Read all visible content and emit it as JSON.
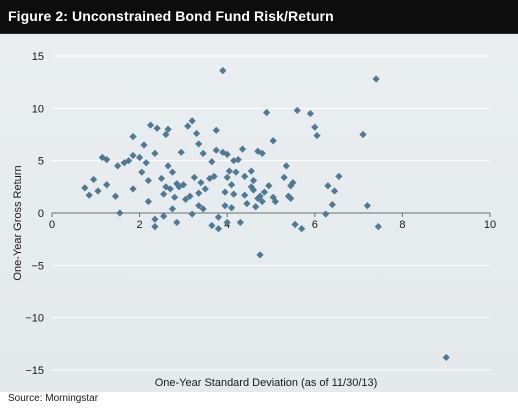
{
  "figure": {
    "title": "Figure 2: Unconstrained Bond Fund Risk/Return",
    "source": "Source: Morningstar"
  },
  "colors": {
    "title_background": "#0d0d0d",
    "panel_background": "#e6ebed",
    "gridline": "#ffffff",
    "marker": "#4d7a94"
  },
  "chart_data": {
    "type": "scatter",
    "title": "Figure 2: Unconstrained Bond Fund Risk/Return",
    "xlabel": "One-Year Standard Deviation (as of 11/30/13)",
    "ylabel": "One-Year Gross Return",
    "xlim": [
      0,
      10
    ],
    "ylim": [
      -15,
      15
    ],
    "x_ticks": [
      0,
      2,
      4,
      6,
      8,
      10
    ],
    "y_ticks": [
      -15,
      -10,
      -5,
      0,
      5,
      10,
      15
    ],
    "x_tick_labels": [
      "0",
      "2",
      "4",
      "6",
      "8",
      "10"
    ],
    "y_tick_labels": [
      "−15",
      "−10",
      "−5",
      "0",
      "5",
      "10",
      "15"
    ],
    "grid": "horizontal",
    "marker": "diamond",
    "points": [
      [
        0.75,
        2.4
      ],
      [
        0.85,
        1.7
      ],
      [
        0.95,
        3.2
      ],
      [
        1.05,
        2.1
      ],
      [
        1.15,
        5.3
      ],
      [
        1.25,
        5.1
      ],
      [
        1.25,
        2.7
      ],
      [
        1.45,
        1.6
      ],
      [
        1.5,
        4.5
      ],
      [
        1.55,
        0.0
      ],
      [
        1.65,
        4.8
      ],
      [
        1.75,
        5.0
      ],
      [
        1.85,
        7.3
      ],
      [
        1.85,
        5.5
      ],
      [
        1.85,
        2.3
      ],
      [
        2.0,
        5.3
      ],
      [
        2.05,
        3.9
      ],
      [
        2.1,
        6.5
      ],
      [
        2.15,
        4.8
      ],
      [
        2.2,
        3.1
      ],
      [
        2.2,
        1.1
      ],
      [
        2.25,
        8.4
      ],
      [
        2.35,
        5.7
      ],
      [
        2.35,
        -0.6
      ],
      [
        2.35,
        -1.3
      ],
      [
        2.4,
        8.1
      ],
      [
        2.5,
        3.3
      ],
      [
        2.55,
        1.8
      ],
      [
        2.55,
        -0.3
      ],
      [
        2.6,
        7.5
      ],
      [
        2.6,
        2.5
      ],
      [
        2.65,
        8.0
      ],
      [
        2.65,
        4.5
      ],
      [
        2.7,
        2.3
      ],
      [
        2.75,
        3.9
      ],
      [
        2.75,
        0.4
      ],
      [
        2.8,
        1.5
      ],
      [
        2.85,
        2.8
      ],
      [
        2.85,
        -0.9
      ],
      [
        2.9,
        2.5
      ],
      [
        2.95,
        5.8
      ],
      [
        3.0,
        2.7
      ],
      [
        3.05,
        1.3
      ],
      [
        3.1,
        8.3
      ],
      [
        3.15,
        1.6
      ],
      [
        3.2,
        8.8
      ],
      [
        3.2,
        -0.1
      ],
      [
        3.25,
        3.4
      ],
      [
        3.3,
        7.6
      ],
      [
        3.35,
        6.6
      ],
      [
        3.35,
        1.9
      ],
      [
        3.35,
        0.7
      ],
      [
        3.4,
        2.9
      ],
      [
        3.45,
        5.7
      ],
      [
        3.45,
        0.4
      ],
      [
        3.5,
        2.3
      ],
      [
        3.6,
        3.3
      ],
      [
        3.65,
        4.9
      ],
      [
        3.65,
        -1.2
      ],
      [
        3.7,
        3.5
      ],
      [
        3.75,
        7.9
      ],
      [
        3.75,
        6.0
      ],
      [
        3.8,
        -1.5
      ],
      [
        3.8,
        -0.4
      ],
      [
        3.9,
        13.6
      ],
      [
        3.9,
        5.8
      ],
      [
        3.95,
        2.0
      ],
      [
        3.95,
        0.7
      ],
      [
        4.0,
        5.6
      ],
      [
        4.0,
        3.4
      ],
      [
        4.0,
        -0.9
      ],
      [
        4.05,
        4.0
      ],
      [
        4.1,
        2.7
      ],
      [
        4.1,
        0.5
      ],
      [
        4.15,
        5.0
      ],
      [
        4.15,
        1.8
      ],
      [
        4.2,
        3.9
      ],
      [
        4.25,
        5.1
      ],
      [
        4.3,
        -0.9
      ],
      [
        4.35,
        6.1
      ],
      [
        4.4,
        3.5
      ],
      [
        4.4,
        1.7
      ],
      [
        4.45,
        0.9
      ],
      [
        4.55,
        4.0
      ],
      [
        4.55,
        2.5
      ],
      [
        4.6,
        3.1
      ],
      [
        4.6,
        2.2
      ],
      [
        4.65,
        0.6
      ],
      [
        4.7,
        5.9
      ],
      [
        4.7,
        1.4
      ],
      [
        4.75,
        1.6
      ],
      [
        4.75,
        -4.0
      ],
      [
        4.8,
        5.7
      ],
      [
        4.8,
        1.1
      ],
      [
        4.85,
        2.0
      ],
      [
        4.9,
        9.6
      ],
      [
        4.95,
        2.6
      ],
      [
        5.05,
        6.9
      ],
      [
        5.05,
        1.5
      ],
      [
        5.1,
        1.1
      ],
      [
        5.3,
        3.4
      ],
      [
        5.35,
        4.5
      ],
      [
        5.4,
        1.6
      ],
      [
        5.45,
        1.4
      ],
      [
        5.45,
        2.6
      ],
      [
        5.5,
        2.9
      ],
      [
        5.55,
        -1.1
      ],
      [
        5.6,
        9.8
      ],
      [
        5.7,
        -1.5
      ],
      [
        5.9,
        9.5
      ],
      [
        6.0,
        8.2
      ],
      [
        6.05,
        7.4
      ],
      [
        6.25,
        -0.1
      ],
      [
        6.3,
        2.6
      ],
      [
        6.4,
        0.8
      ],
      [
        6.45,
        2.1
      ],
      [
        6.55,
        3.5
      ],
      [
        7.1,
        7.5
      ],
      [
        7.2,
        0.7
      ],
      [
        7.4,
        12.8
      ],
      [
        7.45,
        -1.3
      ],
      [
        9.0,
        -13.8
      ]
    ]
  }
}
